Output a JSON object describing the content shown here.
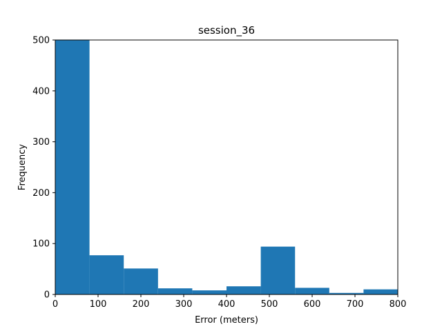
{
  "chart_data": {
    "type": "bar",
    "title": "session_36",
    "xlabel": "Error (meters)",
    "ylabel": "Frequency",
    "xlim": [
      0,
      800
    ],
    "ylim": [
      0,
      500
    ],
    "xticks": [
      "0",
      "100",
      "200",
      "300",
      "400",
      "500",
      "600",
      "700",
      "800"
    ],
    "yticks": [
      "0",
      "100",
      "200",
      "300",
      "400",
      "500"
    ],
    "bin_edges": [
      0,
      80,
      160,
      240,
      320,
      400,
      480,
      560,
      640,
      720,
      800
    ],
    "values": [
      500,
      77,
      51,
      12,
      8,
      16,
      94,
      13,
      3,
      10
    ],
    "grid": false,
    "bar_color": "#1f77b4"
  }
}
